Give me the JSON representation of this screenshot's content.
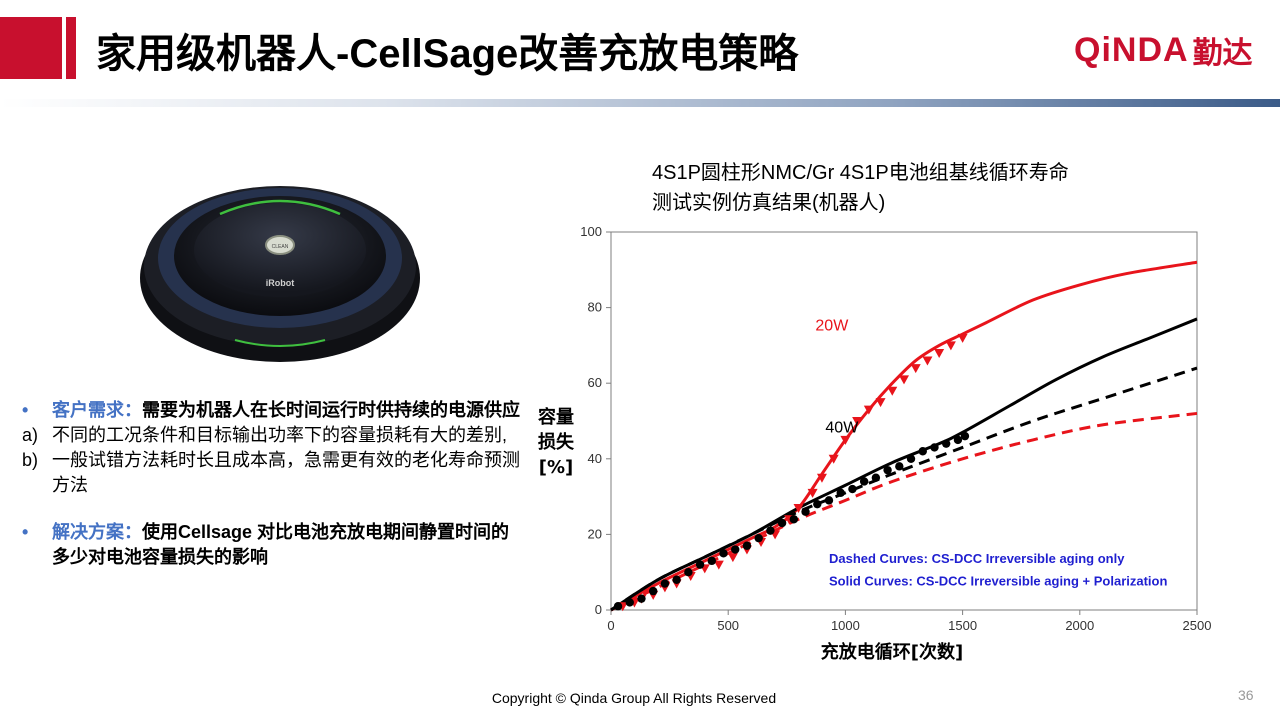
{
  "header": {
    "title": "家用级机器人-CellSage改善充放电策略",
    "logo_text": "QiNDA",
    "logo_cn": "勤达",
    "accent_color": "#c8102e"
  },
  "robot": {
    "brand": "iRobot",
    "button_label": "CLEAN"
  },
  "bullets": {
    "item1_label": "客户需求：",
    "item1_text": "需要为机器人在长时间运行时供持续的电源供应",
    "a_mark": "a)",
    "a_text": "不同的工况条件和目标输出功率下的容量损耗有大的差别,",
    "b_mark": "b)",
    "b_text": "一般试错方法耗时长且成本高，急需更有效的老化寿命预测方法",
    "item2_label": "解决方案：",
    "item2_text": "使用Cellsage 对比电池充放电期间静置时间的多少对电池容量损失的影响"
  },
  "chart_title": {
    "line1": "4S1P圆柱形NMC/Gr 4S1P电池组基线循环寿命",
    "line2": "测试实例仿真结果(机器人)"
  },
  "chart_data": {
    "type": "line",
    "xlabel": "充放电循环[次数]",
    "ylabel_lines": [
      "容量",
      "损失",
      "[%]"
    ],
    "xlim": [
      0,
      2500
    ],
    "ylim": [
      0,
      100
    ],
    "xticks": [
      0,
      500,
      1000,
      1500,
      2000,
      2500
    ],
    "yticks": [
      0,
      20,
      40,
      60,
      80,
      100
    ],
    "grid": false,
    "annotations": [
      "20W",
      "40W"
    ],
    "legend_lines": [
      "Dashed Curves: CS-DCC Irreversible aging only",
      "Solid Curves: CS-DCC Irreversible aging + Polarization"
    ],
    "series": [
      {
        "name": "20W",
        "style": "solid",
        "color": "#e8141b",
        "x": [
          0,
          200,
          400,
          600,
          700,
          800,
          900,
          1000,
          1100,
          1200,
          1300,
          1400,
          1500,
          1600,
          1800,
          2000,
          2200,
          2500
        ],
        "y": [
          0,
          7,
          13,
          19,
          22,
          27,
          36,
          45,
          53,
          60,
          66,
          70,
          73,
          76,
          82,
          86,
          89,
          92
        ]
      },
      {
        "name": "20W",
        "style": "dashed",
        "color": "#e8141b",
        "x": [
          0,
          200,
          400,
          600,
          800,
          1000,
          1200,
          1500,
          1800,
          2100,
          2500
        ],
        "y": [
          0,
          6,
          12,
          18,
          24,
          29,
          34,
          40,
          45,
          49,
          52
        ]
      },
      {
        "name": "40W",
        "style": "solid",
        "color": "#000000",
        "x": [
          0,
          200,
          400,
          600,
          800,
          1000,
          1200,
          1400,
          1500,
          1700,
          1900,
          2100,
          2300,
          2500
        ],
        "y": [
          0,
          8,
          14,
          20,
          27,
          33,
          39,
          44,
          47,
          54,
          61,
          67,
          72,
          77
        ]
      },
      {
        "name": "40W",
        "style": "dashed",
        "color": "#000000",
        "x": [
          0,
          200,
          400,
          600,
          800,
          1000,
          1200,
          1500,
          1800,
          2100,
          2500
        ],
        "y": [
          0,
          8,
          14,
          20,
          26,
          31,
          36,
          43,
          50,
          56,
          64
        ]
      },
      {
        "name": "20W",
        "style": "markers",
        "marker": "triangle-down",
        "color": "#e8141b",
        "x": [
          50,
          100,
          130,
          180,
          230,
          280,
          340,
          400,
          460,
          520,
          580,
          640,
          700,
          760,
          800,
          860,
          900,
          950,
          1000,
          1050,
          1100,
          1150,
          1200,
          1250,
          1300,
          1350,
          1400,
          1450,
          1500
        ],
        "y": [
          1,
          2,
          3,
          4,
          6,
          7,
          9,
          11,
          12,
          14,
          16,
          18,
          20,
          24,
          27,
          31,
          35,
          40,
          45,
          50,
          53,
          55,
          58,
          61,
          64,
          66,
          68,
          70,
          72
        ]
      },
      {
        "name": "40W",
        "style": "markers",
        "marker": "circle",
        "color": "#000000",
        "x": [
          30,
          80,
          130,
          180,
          230,
          280,
          330,
          380,
          430,
          480,
          530,
          580,
          630,
          680,
          730,
          780,
          830,
          880,
          930,
          980,
          1030,
          1080,
          1130,
          1180,
          1230,
          1280,
          1330,
          1380,
          1430,
          1480,
          1510
        ],
        "y": [
          1,
          2,
          3,
          5,
          7,
          8,
          10,
          12,
          13,
          15,
          16,
          17,
          19,
          21,
          23,
          24,
          26,
          28,
          29,
          31,
          32,
          34,
          35,
          37,
          38,
          40,
          42,
          43,
          44,
          45,
          46
        ]
      }
    ]
  },
  "footer": {
    "copyright": "Copyright © Qinda Group  All Rights Reserved",
    "page_number": "36"
  }
}
